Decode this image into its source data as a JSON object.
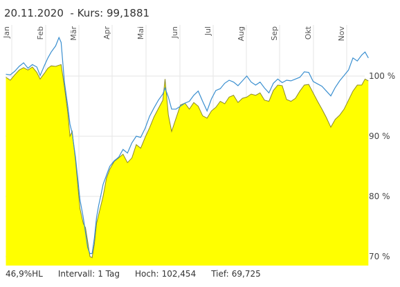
{
  "header": {
    "date": "20.11.2020",
    "kurs_label": "  - Kurs: 99,1881"
  },
  "footer": {
    "hl": "46,9%HL",
    "intervall_label": "Intervall:",
    "intervall_value": "1 Tag",
    "hoch_label": "Hoch:",
    "hoch_value": "102,454",
    "tief_label": "Tief:",
    "tief_value": "69,725"
  },
  "colors": {
    "area": "#ffff00",
    "area_edge": "#8a8a2a",
    "line": "#3a8fd0",
    "grid": "#e6e6e6"
  },
  "chart_data": {
    "type": "area",
    "x_axis_labels": [
      "Jan",
      "Feb",
      "Mär",
      "Apr",
      "Mai",
      "Jun",
      "Jul",
      "Aug",
      "Sep",
      "Okt",
      "Nov"
    ],
    "y_tick_labels": [
      {
        "value": 70,
        "label": "70 %"
      },
      {
        "value": 80,
        "label": "80 %"
      },
      {
        "value": 90,
        "label": "90 %"
      },
      {
        "value": 100,
        "label": "100 %"
      }
    ],
    "ylim": [
      68.5,
      108.5
    ],
    "grid": true,
    "x_days": [
      0,
      4,
      8,
      12,
      16,
      20,
      24,
      28,
      31,
      35,
      38,
      41,
      45,
      48,
      50,
      53,
      56,
      58,
      60,
      63,
      65,
      67,
      70,
      72,
      74,
      76,
      78,
      80,
      82,
      84,
      86,
      88,
      91,
      94,
      98,
      102,
      106,
      110,
      114,
      118,
      122,
      126,
      130,
      134,
      138,
      142,
      144,
      147,
      150,
      154,
      158,
      162,
      166,
      170,
      174,
      178,
      182,
      186,
      190,
      194,
      198,
      202,
      206,
      210,
      214,
      218,
      222,
      226,
      230,
      234,
      238,
      242,
      246,
      250,
      254,
      258,
      262,
      266,
      270,
      274,
      278,
      282,
      286,
      290,
      294,
      298,
      302,
      306,
      310,
      314,
      318,
      322,
      325,
      328
    ],
    "series": [
      {
        "values": [
          99.8,
          99.3,
          100.2,
          101.0,
          101.4,
          101.0,
          101.5,
          100.6,
          99.5,
          100.5,
          101.3,
          101.7,
          101.6,
          101.8,
          101.9,
          98.2,
          94.0,
          90.0,
          90.8,
          86.0,
          82.0,
          78.0,
          75.5,
          74.8,
          72.5,
          70.0,
          69.8,
          72.0,
          75.5,
          77.0,
          78.5,
          80.0,
          83.0,
          84.5,
          85.8,
          86.4,
          87.0,
          85.6,
          86.4,
          88.6,
          88.0,
          89.8,
          91.4,
          93.2,
          94.6,
          96.0,
          99.5,
          93.5,
          90.8,
          93.0,
          95.2,
          95.5,
          94.5,
          95.6,
          95.0,
          93.4,
          93.0,
          94.2,
          94.8,
          95.8,
          95.4,
          96.5,
          96.8,
          95.6,
          96.3,
          96.5,
          97.0,
          96.8,
          97.2,
          96.0,
          95.8,
          97.6,
          98.5,
          98.4,
          96.1,
          95.8,
          96.3,
          97.5,
          98.5,
          98.6,
          97.2,
          95.8,
          94.5,
          93.1,
          91.5,
          92.8,
          93.5,
          94.5,
          96.0,
          97.5,
          98.5,
          98.5,
          99.5,
          99.2
        ]
      },
      {
        "values": [
          100.3,
          100.2,
          100.8,
          101.6,
          102.2,
          101.3,
          101.9,
          101.5,
          100.1,
          101.8,
          103.0,
          104.0,
          105.0,
          106.4,
          105.6,
          99.0,
          95.0,
          92.0,
          90.5,
          86.5,
          83.0,
          79.5,
          76.5,
          74.0,
          71.5,
          70.5,
          70.5,
          73.0,
          76.5,
          78.5,
          80.2,
          82.0,
          83.5,
          85.0,
          85.9,
          86.5,
          87.8,
          87.2,
          88.9,
          90.0,
          89.8,
          91.3,
          93.3,
          94.7,
          96.0,
          97.0,
          98.0,
          96.5,
          94.5,
          94.5,
          95.0,
          95.5,
          95.8,
          96.8,
          97.5,
          95.8,
          94.2,
          96.2,
          97.6,
          97.9,
          98.8,
          99.3,
          99.0,
          98.4,
          99.2,
          100.0,
          99.0,
          98.5,
          99.0,
          98.0,
          97.2,
          98.8,
          99.5,
          98.9,
          99.3,
          99.2,
          99.5,
          99.8,
          100.7,
          100.6,
          99.1,
          98.7,
          98.3,
          97.5,
          96.7,
          98.1,
          99.2,
          100.1,
          101.0,
          103.0,
          102.5,
          103.5,
          104.0,
          103.0
        ]
      }
    ]
  }
}
